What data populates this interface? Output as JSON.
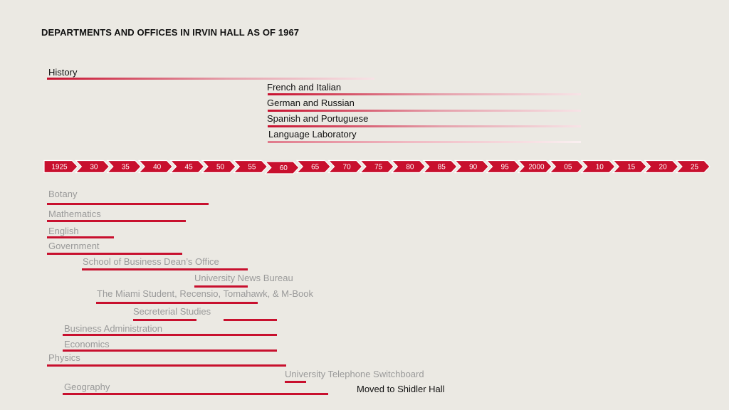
{
  "title": "DEPARTMENTS AND OFFICES IN IRVIN HALL AS OF 1967",
  "axis_ticks": [
    "1925",
    "30",
    "35",
    "40",
    "45",
    "50",
    "55",
    "60",
    "65",
    "70",
    "75",
    "80",
    "85",
    "90",
    "95",
    "2000",
    "05",
    "10",
    "15",
    "20",
    "25"
  ],
  "highlighted_tick": "60",
  "upper_departments": [
    {
      "label": "History",
      "start": 1925,
      "end": 1975
    },
    {
      "label": "French and Italian",
      "start": 1960,
      "end": 2010
    },
    {
      "label": "German and Russian",
      "start": 1960,
      "end": 2010
    },
    {
      "label": "Spanish and Portuguese",
      "start": 1960,
      "end": 2010
    },
    {
      "label": "Language Laboratory",
      "start": 1960,
      "end": 2010
    }
  ],
  "lower_departments": [
    {
      "label": "Botany",
      "start": 1925,
      "end": 1951
    },
    {
      "label": "Mathematics",
      "start": 1925,
      "end": 1947
    },
    {
      "label": "English",
      "start": 1925,
      "end": 1936
    },
    {
      "label": "Government",
      "start": 1925,
      "end": 1946
    },
    {
      "label": "School of Business Dean’s Office",
      "start": 1930,
      "end": 1957
    },
    {
      "label": "University News Bureau",
      "start": 1948,
      "end": 1956
    },
    {
      "label": "The Miami Student, Recensio, Tomahawk, & M-Book",
      "start": 1933,
      "end": 1958
    },
    {
      "label": "Secreterial Studies",
      "start": 1939,
      "end": 1964
    },
    {
      "label": "Business Administration",
      "start": 1927,
      "end": 1961
    },
    {
      "label": "Economics",
      "start": 1927,
      "end": 1961
    },
    {
      "label": "Physics",
      "start": 1925,
      "end": 1963
    },
    {
      "label": "University Telephone Switchboard",
      "start": 1962,
      "end": 1965
    },
    {
      "label": "Geography",
      "start": 1927,
      "end": 1969
    }
  ],
  "note": "Moved to Shidler Hall",
  "colors": {
    "accent": "#c8102e",
    "background": "#ebe9e3"
  }
}
